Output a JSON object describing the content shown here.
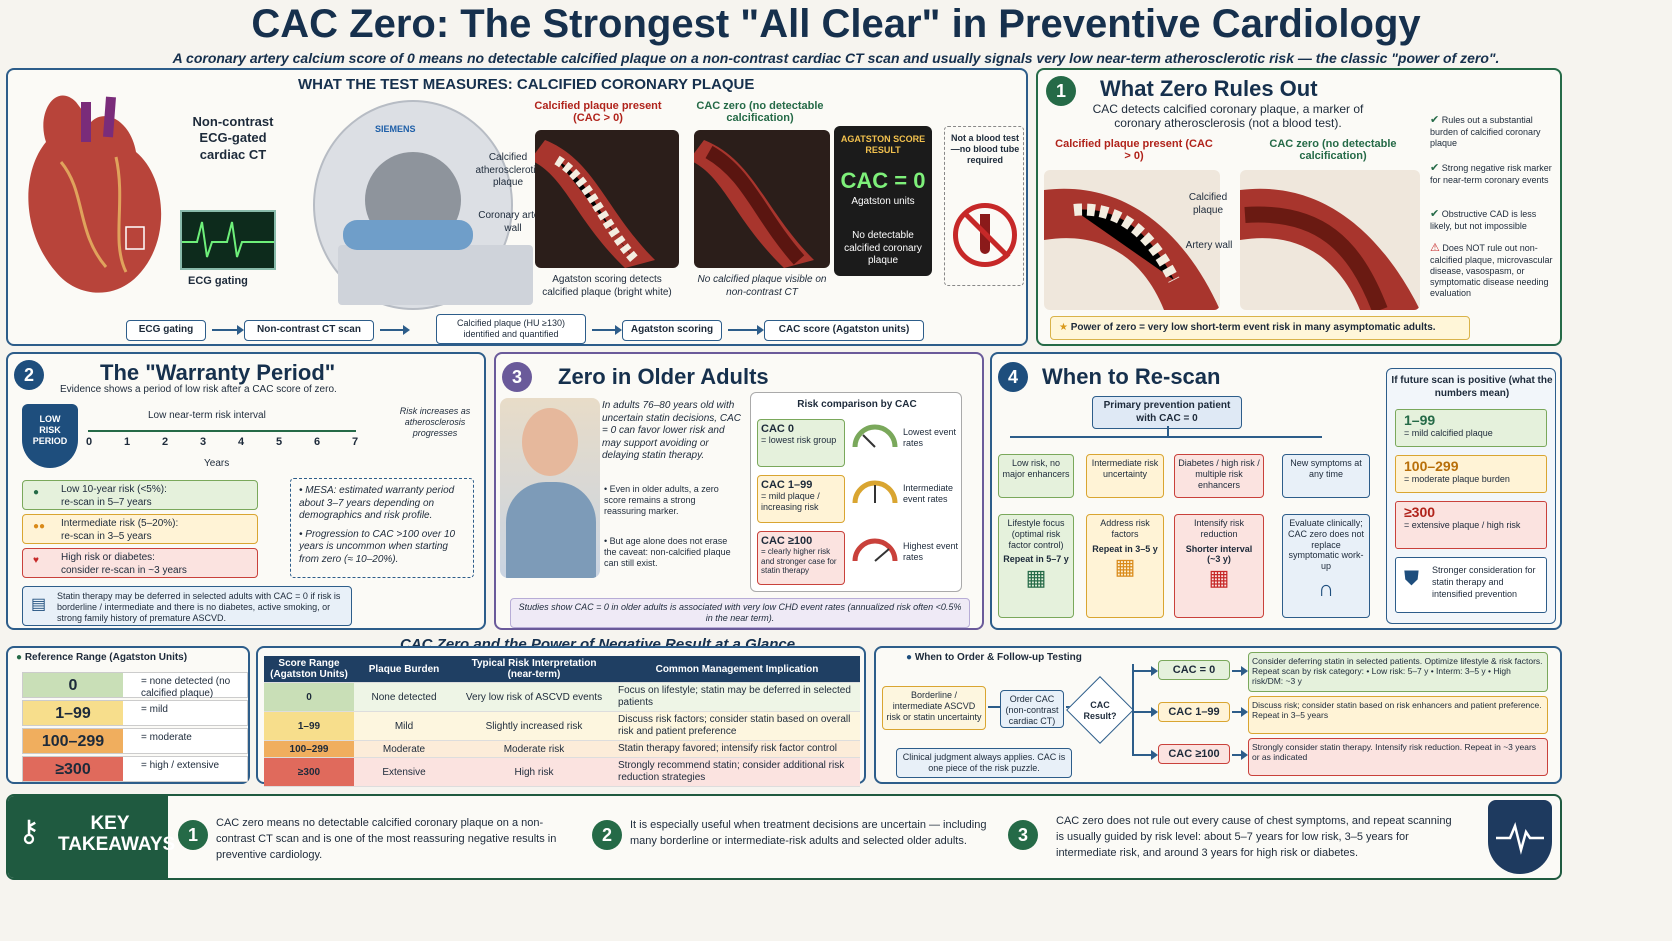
{
  "title": "CAC Zero: The Strongest \"All Clear\" in Preventive Cardiology",
  "subtitle": "A coronary artery calcium score of 0 means no detectable calcified plaque on a non-contrast cardiac CT scan and usually signals very low near-term atherosclerotic risk — the classic \"power of zero\".",
  "measure": {
    "heading": "WHAT THE TEST MEASURES: CALCIFIED CORONARY PLAQUE",
    "ct_label": "Non-contrast ECG-gated cardiac CT",
    "ecg_label": "ECG gating",
    "scanner_brand": "SIEMENS",
    "plaque_present": "Calcified plaque present (CAC > 0)",
    "cac_zero": "CAC zero (no detectable calcification)",
    "calc_label": "Calcified atherosclerotic plaque",
    "wall_label": "Coronary artery wall",
    "agatston_caption": "Agatston scoring detects calcified plaque (bright white)",
    "zero_caption": "No calcified plaque visible on non-contrast CT",
    "result_head": "AGATSTON SCORE RESULT",
    "result_value": "CAC = 0",
    "result_units": "Agatston units",
    "result_note": "No detectable calcified coronary plaque",
    "blood_note": "Not a blood test—no blood tube required",
    "flow": [
      "ECG gating",
      "Non-contrast CT scan",
      "Calcified plaque (HU ≥130) identified and quantified",
      "Agatston scoring",
      "CAC score (Agatston units)"
    ]
  },
  "panel1": {
    "num": "1",
    "title": "What Zero Rules Out",
    "intro": "CAC detects calcified coronary plaque, a marker of coronary atherosclerosis (not a blood test).",
    "left_label": "Calcified plaque present (CAC > 0)",
    "right_label": "CAC zero (no detectable calcification)",
    "calc": "Calcified plaque",
    "wall": "Artery wall",
    "bullets": [
      "Rules out a substantial burden of calcified coronary plaque",
      "Strong negative risk marker for near-term coronary events",
      "Obstructive CAD is less likely, but not impossible",
      "Does NOT rule out non-calcified plaque, microvascular disease, vasospasm, or symptomatic disease needing evaluation"
    ],
    "power": "Power of zero = very low short-term event risk in many asymptomatic adults."
  },
  "panel2": {
    "num": "2",
    "title": "The \"Warranty Period\"",
    "intro": "Evidence shows a period of low risk after a CAC score of zero.",
    "badge": "LOW RISK PERIOD",
    "interval": "Low near-term risk interval",
    "years": [
      "0",
      "1",
      "2",
      "3",
      "4",
      "5",
      "6",
      "7"
    ],
    "years_label": "Years",
    "increase": "Risk increases as atherosclerosis progresses",
    "rows": [
      {
        "title": "Low 10-year risk (<5%):",
        "text": "re-scan in 5–7 years"
      },
      {
        "title": "Intermediate risk (5–20%):",
        "text": "re-scan in 3–5 years"
      },
      {
        "title": "High risk or diabetes:",
        "text": "consider re-scan in ~3 years"
      }
    ],
    "notes": [
      "MESA: estimated warranty period about 3–7 years depending on demographics and risk profile.",
      "Progression to CAC >100 over 10 years is uncommon when starting from zero (≈ 10–20%)."
    ],
    "statin": "Statin therapy may be deferred in selected adults with CAC = 0 if risk is borderline / intermediate and there is no diabetes, active smoking, or strong family history of premature ASCVD."
  },
  "panel3": {
    "num": "3",
    "title": "Zero in Older Adults",
    "text1": "In adults 76–80 years old with uncertain statin decisions, CAC = 0 can favor lower risk and may support avoiding or delaying statin therapy.",
    "b1": "Even in older adults, a zero score remains a strong reassuring marker.",
    "b2": "But age alone does not erase the caveat: non-calcified plaque can still exist.",
    "risk_head": "Risk comparison by CAC",
    "risk": [
      {
        "score": "CAC 0",
        "desc": "= lowest risk group",
        "rate": "Lowest event rates"
      },
      {
        "score": "CAC 1–99",
        "desc": "= mild plaque / increasing risk",
        "rate": "Intermediate event rates"
      },
      {
        "score": "CAC ≥100",
        "desc": "= clearly higher risk and stronger case for statin therapy",
        "rate": "Highest event rates"
      }
    ],
    "study": "Studies show CAC = 0 in older adults is associated with very low CHD event rates (annualized risk often <0.5% in the near term)."
  },
  "panel4": {
    "num": "4",
    "title": "When to Re-scan",
    "root": "Primary prevention patient with CAC = 0",
    "cats": [
      {
        "top": "Low risk, no major enhancers",
        "mid": "Lifestyle focus (optimal risk factor control)",
        "bot": "Repeat in 5–7 y"
      },
      {
        "top": "Intermediate risk uncertainty",
        "mid": "Address risk factors",
        "bot": "Repeat in 3–5 y"
      },
      {
        "top": "Diabetes / high risk / multiple risk enhancers",
        "mid": "Intensify risk reduction",
        "bot": "Shorter interval (~3 y)"
      },
      {
        "top": "New symptoms at any time",
        "mid": "Evaluate clinically; CAC zero does not replace symptomatic work-up",
        "bot": ""
      }
    ],
    "pos_head": "If future scan is positive (what the numbers mean)",
    "pos": [
      {
        "v": "1–99",
        "t": "= mild calcified plaque"
      },
      {
        "v": "100–299",
        "t": "= moderate plaque burden"
      },
      {
        "v": "≥300",
        "t": "= extensive plaque / high risk"
      }
    ],
    "shield": "Stronger consideration for statin therapy and intensified prevention"
  },
  "glance": {
    "title": "CAC Zero and the Power of Negative Result at a Glance",
    "ref_title": "Reference Range (Agatston Units)",
    "ref": [
      {
        "v": "0",
        "t": "= none detected (no calcified plaque)"
      },
      {
        "v": "1–99",
        "t": "= mild"
      },
      {
        "v": "100–299",
        "t": "= moderate"
      },
      {
        "v": "≥300",
        "t": "= high / extensive"
      }
    ],
    "headers": [
      "Score Range (Agatston Units)",
      "Plaque Burden",
      "Typical Risk Interpretation (near-term)",
      "Common Management Implication"
    ],
    "rows": [
      [
        "0",
        "None detected",
        "Very low risk of ASCVD events",
        "Focus on lifestyle; statin may be deferred in selected patients"
      ],
      [
        "1–99",
        "Mild",
        "Slightly increased risk",
        "Discuss risk factors; consider statin based on overall risk and patient preference"
      ],
      [
        "100–299",
        "Moderate",
        "Moderate risk",
        "Statin therapy favored; intensify risk factor control"
      ],
      [
        "≥300",
        "Extensive",
        "High risk",
        "Strongly recommend statin; consider additional risk reduction strategies"
      ]
    ],
    "order_title": "When to Order & Follow-up Testing",
    "order_start": "Borderline / intermediate ASCVD risk or statin uncertainty",
    "order_mid": "Order CAC (non-contrast cardiac CT)",
    "order_q": "CAC Result?",
    "judgement": "Clinical judgment always applies. CAC is one piece of the risk puzzle.",
    "outcomes": [
      {
        "r": "CAC = 0",
        "t": "Consider deferring statin in selected patients. Optimize lifestyle & risk factors. Repeat scan by risk category: • Low risk: 5–7 y • Interm: 3–5 y • High risk/DM: ~3 y"
      },
      {
        "r": "CAC 1–99",
        "t": "Discuss risk; consider statin based on risk enhancers and patient preference. Repeat in 3–5 years"
      },
      {
        "r": "CAC ≥100",
        "t": "Strongly consider statin therapy. Intensify risk reduction. Repeat in ~3 years or as indicated"
      }
    ]
  },
  "takeaways": {
    "label": "KEY TAKEAWAYS",
    "items": [
      {
        "n": "1",
        "t": "CAC zero means no detectable calcified coronary plaque on a non-contrast CT scan and is one of the most reassuring negative results in preventive cardiology."
      },
      {
        "n": "2",
        "t": "It is especially useful when treatment decisions are uncertain — including many borderline or intermediate-risk adults and selected older adults."
      },
      {
        "n": "3",
        "t": "CAC zero does not rule out every cause of chest symptoms, and repeat scanning is usually guided by risk level: about 5–7 years for low risk, 3–5 years for intermediate risk, and around 3 years for high risk or diabetes."
      }
    ]
  }
}
